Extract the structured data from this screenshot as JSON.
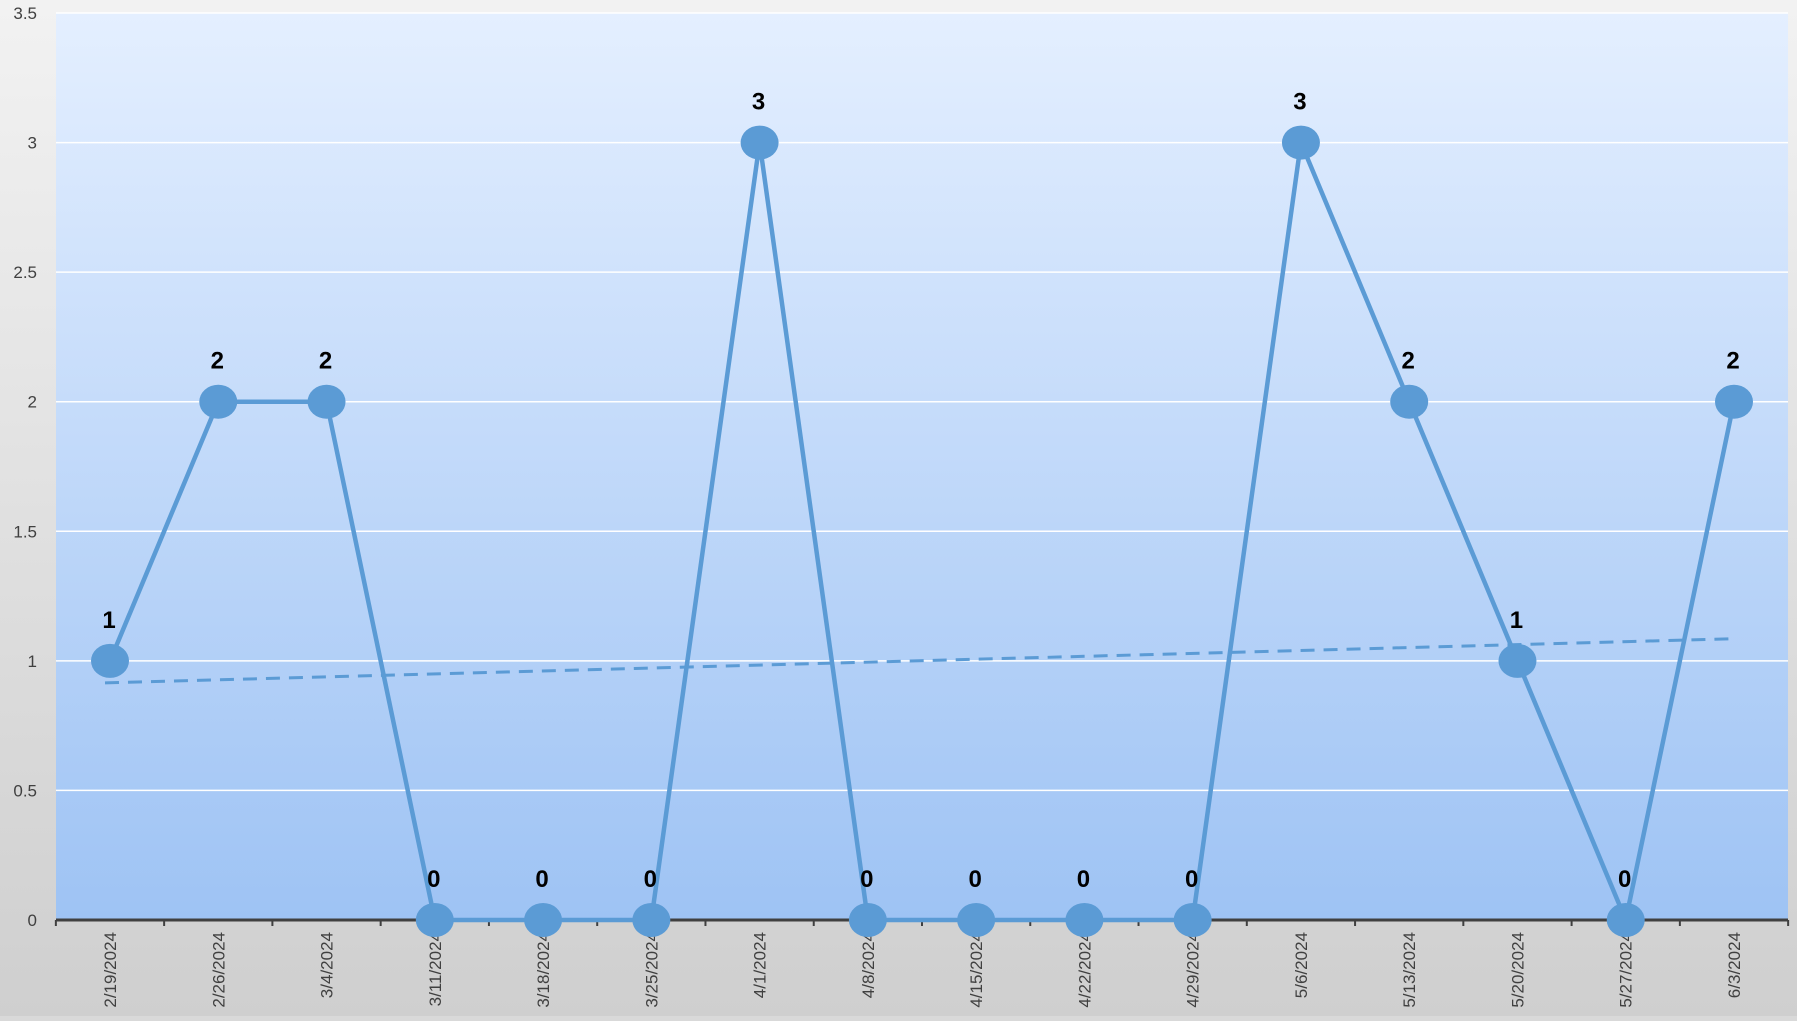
{
  "chart_data": {
    "type": "line",
    "title": "",
    "xlabel": "",
    "ylabel": "",
    "categories": [
      "2/19/2024",
      "2/26/2024",
      "3/4/2024",
      "3/11/2024",
      "3/18/2024",
      "3/25/2024",
      "4/1/2024",
      "4/8/2024",
      "4/15/2024",
      "4/22/2024",
      "4/29/2024",
      "5/6/2024",
      "5/13/2024",
      "5/20/2024",
      "5/27/2024",
      "6/3/2024"
    ],
    "series": [
      {
        "values": [
          1,
          2,
          2,
          0,
          0,
          0,
          3,
          0,
          0,
          0,
          0,
          3,
          2,
          1,
          0,
          2
        ],
        "data_labels": [
          "1",
          "2",
          "2",
          "0",
          "0",
          "0",
          "3",
          "0",
          "0",
          "0",
          "0",
          "3",
          "2",
          "1",
          "0",
          "2"
        ],
        "color": "#5b9bd5",
        "marker": "circle"
      }
    ],
    "trendline": {
      "type": "linear",
      "style": "dashed",
      "color": "#5b9bd5",
      "start": 0.915,
      "end": 1.085
    },
    "ylim": [
      0,
      3.5
    ],
    "yticks": [
      "0",
      "0.5",
      "1",
      "1.5",
      "2",
      "2.5",
      "3",
      "3.5"
    ],
    "grid": true,
    "legend": "none",
    "colors": {
      "plot_gradient_top": "#e4efff",
      "plot_gradient_bottom": "#9ec3f4",
      "outer_background": "#d9d9d9",
      "axis_line": "#404040",
      "gridline": "#ffffff"
    }
  }
}
